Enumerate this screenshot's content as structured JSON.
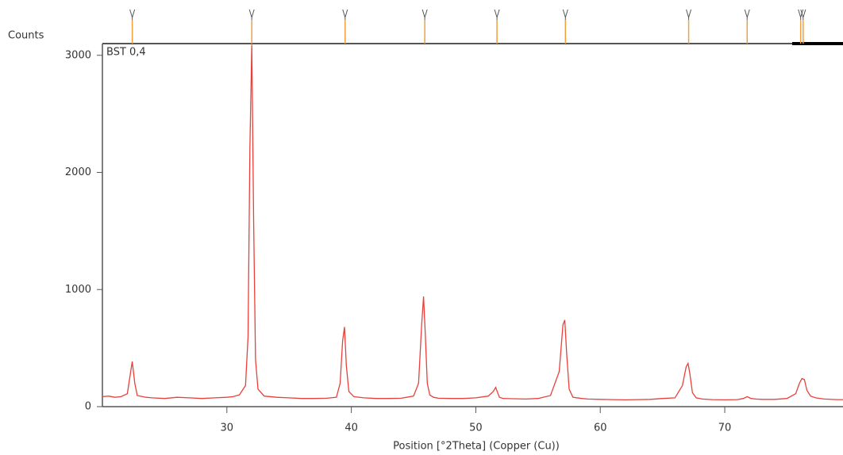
{
  "chart_data": {
    "type": "line",
    "y_label": "Counts",
    "x_label": "Position [°2Theta] (Copper (Cu))",
    "xlim": [
      20,
      79.5
    ],
    "ylim": [
      0,
      3100
    ],
    "xticks": [
      30,
      40,
      50,
      60,
      70
    ],
    "yticks": [
      0,
      1000,
      2000,
      3000
    ],
    "reference_peaks": [
      22.4,
      32.0,
      39.5,
      45.9,
      51.7,
      57.2,
      67.1,
      71.8,
      76.1,
      76.3
    ],
    "reference_color": "#f0a040",
    "x": [
      20,
      20.5,
      21,
      21.5,
      22,
      22.2,
      22.4,
      22.6,
      22.8,
      23.5,
      24,
      25,
      26,
      27,
      28,
      29,
      30,
      30.5,
      31,
      31.5,
      31.7,
      31.85,
      32,
      32.15,
      32.3,
      32.5,
      33,
      34,
      35,
      36,
      37,
      38,
      38.8,
      39.1,
      39.3,
      39.45,
      39.6,
      39.8,
      40.2,
      41,
      42,
      43,
      44,
      45,
      45.4,
      45.65,
      45.8,
      45.95,
      46.1,
      46.3,
      46.6,
      47,
      48,
      49,
      50,
      51,
      51.4,
      51.6,
      51.75,
      51.9,
      52.2,
      53,
      54,
      55,
      56,
      56.7,
      57,
      57.15,
      57.3,
      57.5,
      57.8,
      58.5,
      59,
      60,
      61,
      62,
      63,
      64,
      65,
      66,
      66.6,
      66.9,
      67.05,
      67.2,
      67.4,
      67.7,
      68.2,
      69,
      70,
      71,
      71.5,
      71.8,
      72.1,
      72.5,
      73,
      74,
      75,
      75.7,
      76,
      76.2,
      76.4,
      76.6,
      76.9,
      77.3,
      78,
      79,
      79.5
    ],
    "series": [
      {
        "name": "BST 0,4",
        "color": "#e8403a",
        "values": [
          85,
          90,
          80,
          85,
          110,
          250,
          385,
          200,
          95,
          80,
          75,
          70,
          80,
          75,
          70,
          75,
          80,
          85,
          100,
          180,
          600,
          2200,
          3090,
          1600,
          400,
          150,
          90,
          80,
          75,
          70,
          70,
          72,
          80,
          200,
          560,
          680,
          350,
          130,
          85,
          75,
          70,
          70,
          72,
          90,
          200,
          700,
          940,
          600,
          200,
          100,
          80,
          72,
          70,
          70,
          75,
          90,
          130,
          165,
          120,
          80,
          70,
          68,
          65,
          70,
          95,
          300,
          700,
          740,
          450,
          150,
          80,
          70,
          65,
          62,
          60,
          58,
          60,
          62,
          70,
          75,
          180,
          340,
          370,
          280,
          120,
          75,
          65,
          60,
          58,
          60,
          70,
          85,
          70,
          65,
          62,
          62,
          70,
          110,
          200,
          240,
          230,
          140,
          90,
          75,
          65,
          60,
          60
        ]
      }
    ]
  }
}
